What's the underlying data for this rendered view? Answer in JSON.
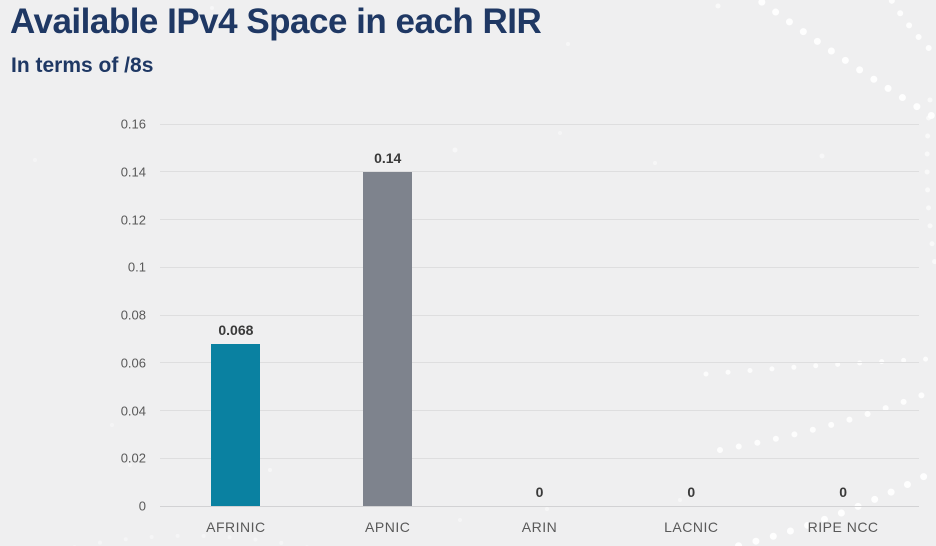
{
  "header": {
    "title": "Available IPv4 Space in each RIR",
    "subtitle": "In terms of /8s"
  },
  "colors": {
    "background": "#efeff0",
    "title_text": "#1f3864",
    "gridline": "#dededf",
    "axis_line": "#d2d2d4",
    "tick_label": "#595959",
    "value_label": "#3a3a3a",
    "dots": "#ffffff",
    "afrinic_bar": "#0a81a1",
    "apnic_bar": "#7e838d"
  },
  "chart_data": {
    "type": "bar",
    "title": "Available IPv4 Space in each RIR",
    "subtitle": "In terms of /8s",
    "categories": [
      "AFRINIC",
      "APNIC",
      "ARIN",
      "LACNIC",
      "RIPE NCC"
    ],
    "values": [
      0.068,
      0.14,
      0,
      0,
      0
    ],
    "value_labels": [
      "0.068",
      "0.14",
      "0",
      "0",
      "0"
    ],
    "bar_colors": [
      "#0a81a1",
      "#7e838d",
      null,
      null,
      null
    ],
    "xlabel": "",
    "ylabel": "",
    "ylim": [
      0,
      0.16
    ],
    "y_tick_values": [
      0,
      0.02,
      0.04,
      0.06,
      0.08,
      0.1,
      0.12,
      0.14,
      0.16
    ],
    "y_tick_labels": [
      "0",
      "0.02",
      "0.04",
      "0.06",
      "0.08",
      "0.1",
      "0.12",
      "0.14",
      "0.16"
    ],
    "grid": true,
    "legend": false
  }
}
